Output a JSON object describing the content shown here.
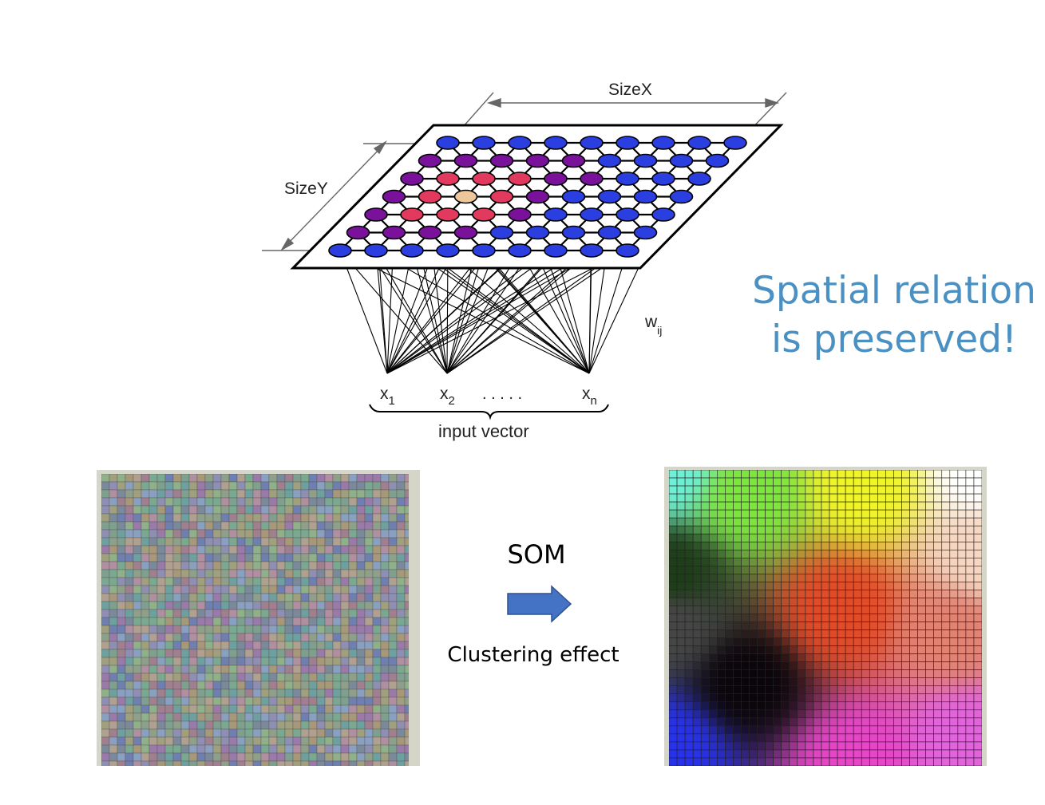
{
  "diagram": {
    "size_x_label": "SizeX",
    "size_y_label": "SizeY",
    "weight_label": "w",
    "weight_sub": "ij",
    "inputs": [
      {
        "base": "x",
        "sub": "1"
      },
      {
        "base": "x",
        "sub": "2"
      },
      {
        "base": "x",
        "sub": "n"
      }
    ],
    "ellipsis": ". . . . .",
    "input_vector_label": "input vector",
    "node_colors": {
      "blue": "#2b3ee0",
      "purple": "#7a119a",
      "red": "#e23a5e",
      "winner": "#eec89a"
    }
  },
  "caption": {
    "line1": "Spatial relation",
    "line2": "is preserved!",
    "color": "#4a90c2"
  },
  "transition": {
    "som_label": "SOM",
    "effect_label": "Clustering effect",
    "arrow_color": "#4472c4",
    "arrow_icon": "right-arrow-icon"
  }
}
